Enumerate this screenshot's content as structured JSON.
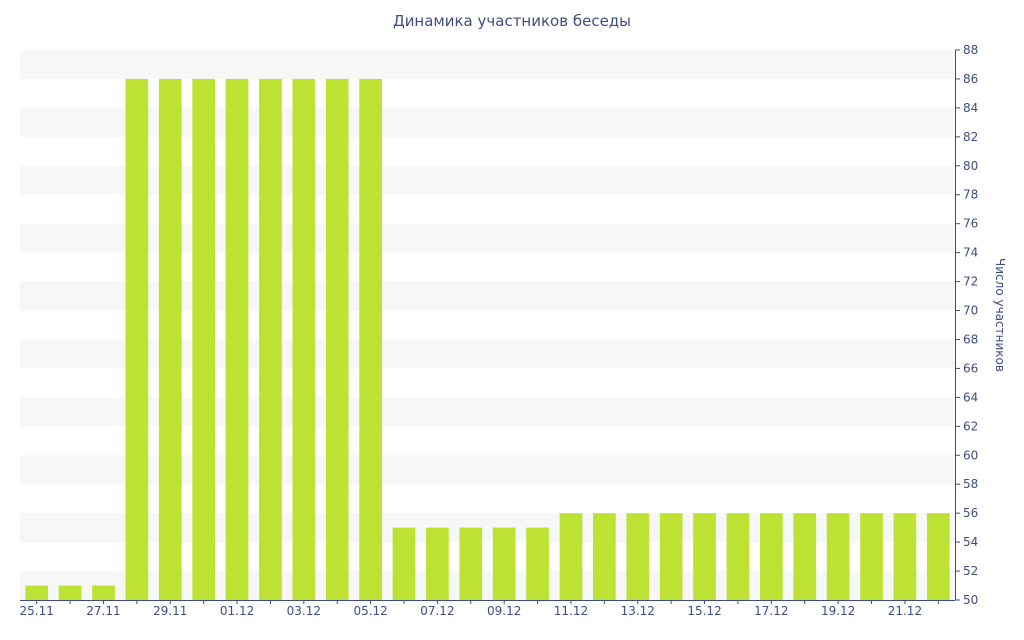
{
  "chart_data": {
    "type": "bar",
    "title": "Динамика участников беседы",
    "ylabel": "Число участников",
    "xlabel": "",
    "ylim": [
      50,
      88
    ],
    "y_ticks": [
      50,
      52,
      54,
      56,
      58,
      60,
      62,
      64,
      66,
      68,
      70,
      72,
      74,
      76,
      78,
      80,
      82,
      84,
      86,
      88
    ],
    "y_axis_position": "right",
    "grid": "alternating horizontal bands",
    "bar_color": "#bde234",
    "band_color": "#f7f7f7",
    "text_color": "#3e4d80",
    "categories": [
      "25.11",
      "26.11",
      "27.11",
      "28.11",
      "29.11",
      "30.11",
      "01.12",
      "02.12",
      "03.12",
      "04.12",
      "05.12",
      "06.12",
      "07.12",
      "08.12",
      "09.12",
      "10.12",
      "11.12",
      "12.12",
      "13.12",
      "14.12",
      "15.12",
      "16.12",
      "17.12",
      "18.12",
      "19.12",
      "20.12",
      "21.12",
      "22.12"
    ],
    "x_tick_labels": [
      "25.11",
      "27.11",
      "29.11",
      "01.12",
      "03.12",
      "05.12",
      "07.12",
      "09.12",
      "11.12",
      "13.12",
      "15.12",
      "17.12",
      "19.12",
      "21.12"
    ],
    "values": [
      51,
      51,
      51,
      86,
      86,
      86,
      86,
      86,
      86,
      86,
      86,
      55,
      55,
      55,
      55,
      55,
      56,
      56,
      56,
      56,
      56,
      56,
      56,
      56,
      56,
      56,
      56,
      56
    ]
  }
}
